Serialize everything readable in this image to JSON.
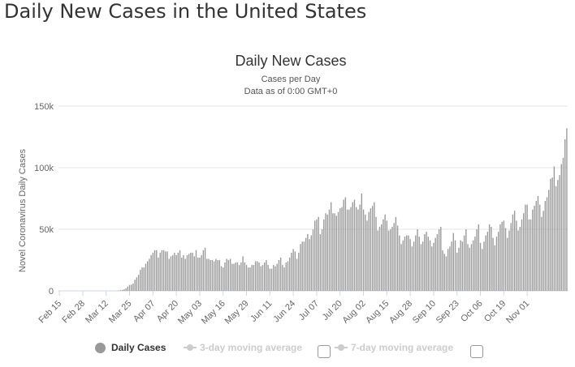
{
  "page": {
    "heading": "Daily New Cases in the United States"
  },
  "chart_data": {
    "type": "bar",
    "title": "Daily New Cases",
    "subtitle": "Cases per Day",
    "subtitle2": "Data as of 0:00 GMT+0",
    "ylabel": "Novel Coronavirus Daily Cases",
    "xlabel": "",
    "ylim": [
      0,
      150000
    ],
    "yticks": [
      0,
      50000,
      100000,
      150000
    ],
    "ytick_labels": [
      "0",
      "50k",
      "100k",
      "150k"
    ],
    "grid": true,
    "start_date": "2020-02-15",
    "xtick_labels": [
      "Feb 15",
      "Feb 28",
      "Mar 12",
      "Mar 25",
      "Apr 07",
      "Apr 20",
      "May 03",
      "May 16",
      "May 29",
      "Jun 11",
      "Jun 24",
      "Jul 07",
      "Jul 20",
      "Aug 02",
      "Aug 15",
      "Aug 28",
      "Sep 10",
      "Sep 23",
      "Oct 06",
      "Oct 19",
      "Nov 01"
    ],
    "xtick_index": [
      0,
      13,
      26,
      39,
      52,
      65,
      78,
      91,
      104,
      117,
      130,
      143,
      156,
      169,
      182,
      195,
      208,
      221,
      234,
      247,
      260
    ],
    "bar_color": "#999999",
    "series": [
      {
        "name": "Daily Cases",
        "values": [
          0,
          0,
          0,
          0,
          0,
          0,
          0,
          0,
          0,
          0,
          0,
          0,
          0,
          0,
          0,
          0,
          0,
          0,
          0,
          0,
          0,
          0,
          0,
          0,
          0,
          0,
          0,
          0,
          0,
          0,
          0,
          0,
          100,
          200,
          500,
          800,
          1200,
          2000,
          3500,
          4800,
          5000,
          6000,
          9000,
          11000,
          13000,
          17000,
          19000,
          19000,
          22000,
          24000,
          26000,
          29000,
          31000,
          33000,
          33000,
          27000,
          31000,
          33000,
          33000,
          32000,
          32000,
          26000,
          28000,
          29000,
          31000,
          29000,
          31000,
          33000,
          27000,
          29000,
          26000,
          29000,
          30000,
          31000,
          31000,
          28000,
          33000,
          27000,
          27000,
          29000,
          33000,
          35000,
          26000,
          26000,
          25000,
          25000,
          24000,
          26000,
          25000,
          25000,
          20000,
          19000,
          23000,
          26000,
          25000,
          26000,
          22000,
          22000,
          23000,
          23000,
          21000,
          23000,
          28000,
          23000,
          21000,
          19000,
          19000,
          21000,
          21000,
          24000,
          24000,
          23000,
          20000,
          21000,
          23000,
          25000,
          21000,
          18000,
          18000,
          21000,
          20000,
          22000,
          25000,
          27000,
          21000,
          19000,
          23000,
          24000,
          27000,
          31000,
          34000,
          32000,
          26000,
          31000,
          38000,
          40000,
          40000,
          43000,
          46000,
          42000,
          45000,
          50000,
          57000,
          58000,
          60000,
          46000,
          50000,
          58000,
          63000,
          62000,
          66000,
          72000,
          63000,
          63000,
          61000,
          64000,
          67000,
          68000,
          74000,
          76000,
          66000,
          66000,
          68000,
          72000,
          74000,
          68000,
          66000,
          70000,
          79000,
          66000,
          62000,
          57000,
          64000,
          67000,
          69000,
          72000,
          60000,
          49000,
          52000,
          54000,
          58000,
          62000,
          57000,
          49000,
          50000,
          52000,
          55000,
          60000,
          53000,
          45000,
          38000,
          41000,
          44000,
          45000,
          45000,
          42000,
          36000,
          40000,
          45000,
          50000,
          44000,
          38000,
          40000,
          46000,
          48000,
          44000,
          41000,
          36000,
          39000,
          43000,
          46000,
          50000,
          52000,
          33000,
          30000,
          28000,
          34000,
          36000,
          40000,
          47000,
          41000,
          31000,
          35000,
          41000,
          40000,
          45000,
          50000,
          38000,
          35000,
          38000,
          41000,
          44000,
          50000,
          54000,
          39000,
          34000,
          40000,
          45000,
          48000,
          54000,
          52000,
          43000,
          37000,
          44000,
          48000,
          54000,
          56000,
          57000,
          51000,
          43000,
          49000,
          55000,
          62000,
          65000,
          57000,
          49000,
          52000,
          58000,
          63000,
          70000,
          70000,
          58000,
          58000,
          66000,
          69000,
          73000,
          77000,
          70000,
          60000,
          65000,
          73000,
          76000,
          82000,
          91000,
          92000,
          101000,
          85000,
          90000,
          94000,
          103000,
          108000,
          123000,
          132000
        ]
      },
      {
        "name": "3-day moving average",
        "enabled": false
      },
      {
        "name": "7-day moving average",
        "enabled": false
      }
    ]
  }
}
